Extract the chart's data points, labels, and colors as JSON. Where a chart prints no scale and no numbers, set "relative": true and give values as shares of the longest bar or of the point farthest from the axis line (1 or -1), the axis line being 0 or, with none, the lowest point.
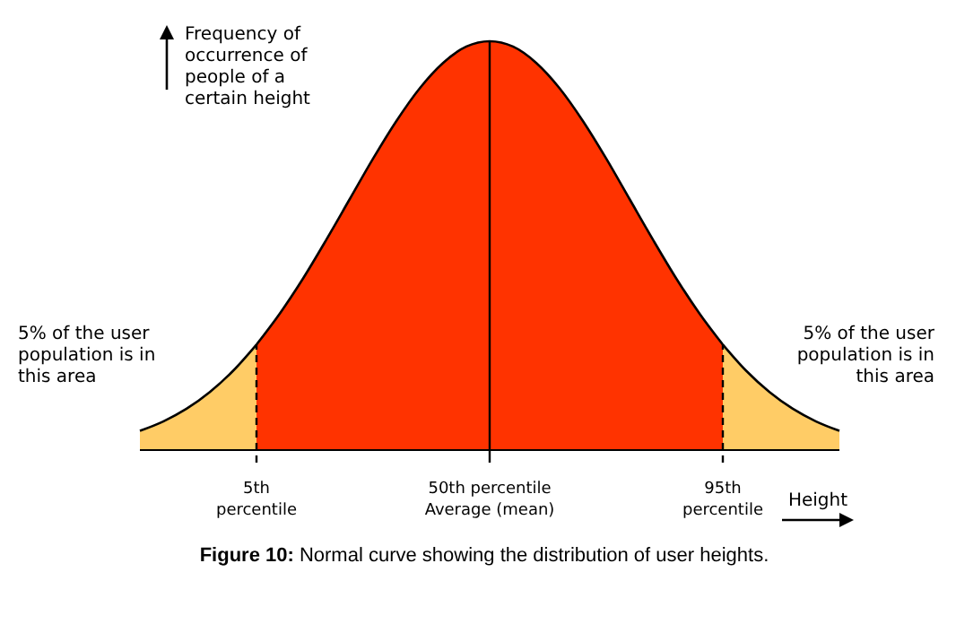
{
  "chart_data": {
    "type": "area",
    "relative": true,
    "ylabel": "Frequency of\noccurrence of\npeople of a\ncertain height",
    "xlabel": "Height",
    "categories": [
      null,
      null,
      null,
      null,
      null,
      "5th\npercentile",
      null,
      null,
      null,
      null,
      null,
      null,
      null,
      null,
      null,
      "50th percentile\nAverage (mean)",
      null,
      null,
      null,
      null,
      null,
      null,
      null,
      null,
      null,
      "95th\npercentile",
      null,
      null,
      null,
      null,
      null
    ],
    "series": [
      {
        "color": "#ffcc66",
        "values": [
          0.047,
          0.07,
          0.101,
          0.142,
          0.194,
          0.258,
          null,
          null,
          null,
          null,
          null,
          null,
          null,
          null,
          null,
          null,
          null,
          null,
          null,
          null,
          null,
          null,
          null,
          null,
          null,
          null,
          null,
          null,
          null,
          null,
          null
        ]
      },
      {
        "color": "#ff3300",
        "values": [
          null,
          null,
          null,
          null,
          null,
          0.258,
          0.334,
          0.42,
          0.515,
          0.614,
          0.713,
          0.805,
          0.885,
          0.947,
          0.987,
          1,
          0.987,
          0.947,
          0.885,
          0.805,
          0.713,
          0.614,
          0.515,
          0.42,
          0.334,
          0.258,
          null,
          null,
          null,
          null,
          null
        ]
      },
      {
        "color": "#ffcc66",
        "values": [
          null,
          null,
          null,
          null,
          null,
          null,
          null,
          null,
          null,
          null,
          null,
          null,
          null,
          null,
          null,
          null,
          null,
          null,
          null,
          null,
          null,
          null,
          null,
          null,
          null,
          0.258,
          0.194,
          0.142,
          0.101,
          0.07,
          0.047
        ]
      }
    ],
    "ref_lines": [
      {
        "axis": "x",
        "value": "5th\npercentile",
        "line_style": "dashed",
        "color": "#000000"
      },
      {
        "axis": "x",
        "value": "50th percentile\nAverage (mean)",
        "line_style": "solid",
        "color": "#000000"
      },
      {
        "axis": "x",
        "value": "95th\npercentile",
        "line_style": "dashed",
        "color": "#000000"
      }
    ],
    "annotations": [
      "5% of the user\npopulation is in\nthis area",
      "5% of the user\npopulation is in\nthis area",
      "Figure 10: Normal curve showing the distribution of user heights."
    ]
  }
}
